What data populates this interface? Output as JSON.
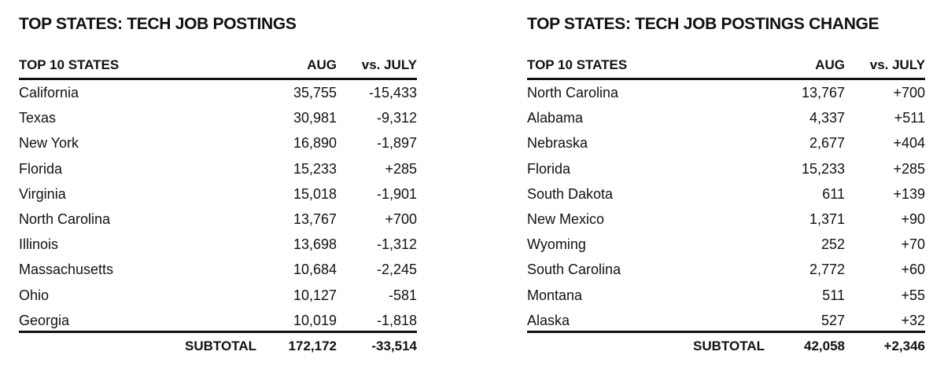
{
  "tables": [
    {
      "title": "TOP STATES: TECH JOB POSTINGS",
      "headers": [
        "TOP 10 STATES",
        "AUG",
        "vs. JULY"
      ],
      "rows": [
        [
          "California",
          "35,755",
          "-15,433"
        ],
        [
          "Texas",
          "30,981",
          "-9,312"
        ],
        [
          "New York",
          "16,890",
          "-1,897"
        ],
        [
          "Florida",
          "15,233",
          "+285"
        ],
        [
          "Virginia",
          "15,018",
          "-1,901"
        ],
        [
          "North Carolina",
          "13,767",
          "+700"
        ],
        [
          "Illinois",
          "13,698",
          "-1,312"
        ],
        [
          "Massachusetts",
          "10,684",
          "-2,245"
        ],
        [
          "Ohio",
          "10,127",
          "-581"
        ],
        [
          "Georgia",
          "10,019",
          "-1,818"
        ]
      ],
      "subtotal": [
        "SUBTOTAL",
        "172,172",
        "-33,514"
      ]
    },
    {
      "title": "TOP STATES: TECH JOB POSTINGS CHANGE",
      "headers": [
        "TOP 10 STATES",
        "AUG",
        "vs. JULY"
      ],
      "rows": [
        [
          "North Carolina",
          "13,767",
          "+700"
        ],
        [
          "Alabama",
          "4,337",
          "+511"
        ],
        [
          "Nebraska",
          "2,677",
          "+404"
        ],
        [
          "Florida",
          "15,233",
          "+285"
        ],
        [
          "South Dakota",
          "611",
          "+139"
        ],
        [
          "New Mexico",
          "1,371",
          "+90"
        ],
        [
          "Wyoming",
          "252",
          "+70"
        ],
        [
          "South Carolina",
          "2,772",
          "+60"
        ],
        [
          "Montana",
          "511",
          "+55"
        ],
        [
          "Alaska",
          "527",
          "+32"
        ]
      ],
      "subtotal": [
        "SUBTOTAL",
        "42,058",
        "+2,346"
      ]
    }
  ]
}
